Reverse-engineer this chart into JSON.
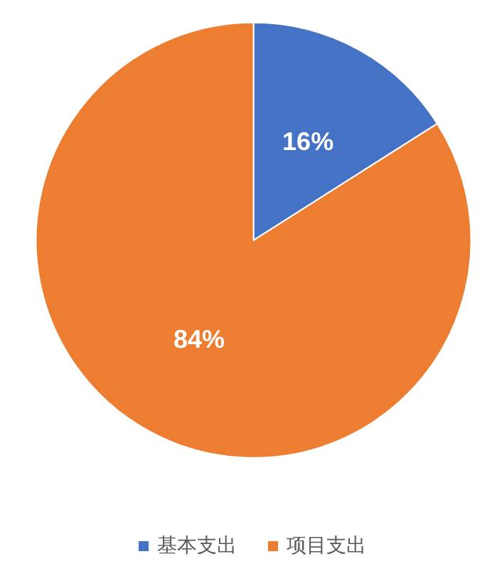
{
  "chart_data": {
    "type": "pie",
    "categories": [
      "基本支出",
      "项目支出"
    ],
    "values": [
      16,
      84
    ],
    "colors": [
      "#4472c4",
      "#ed7d31"
    ],
    "value_labels": [
      "16%",
      "84%"
    ],
    "legend": "bottom"
  }
}
